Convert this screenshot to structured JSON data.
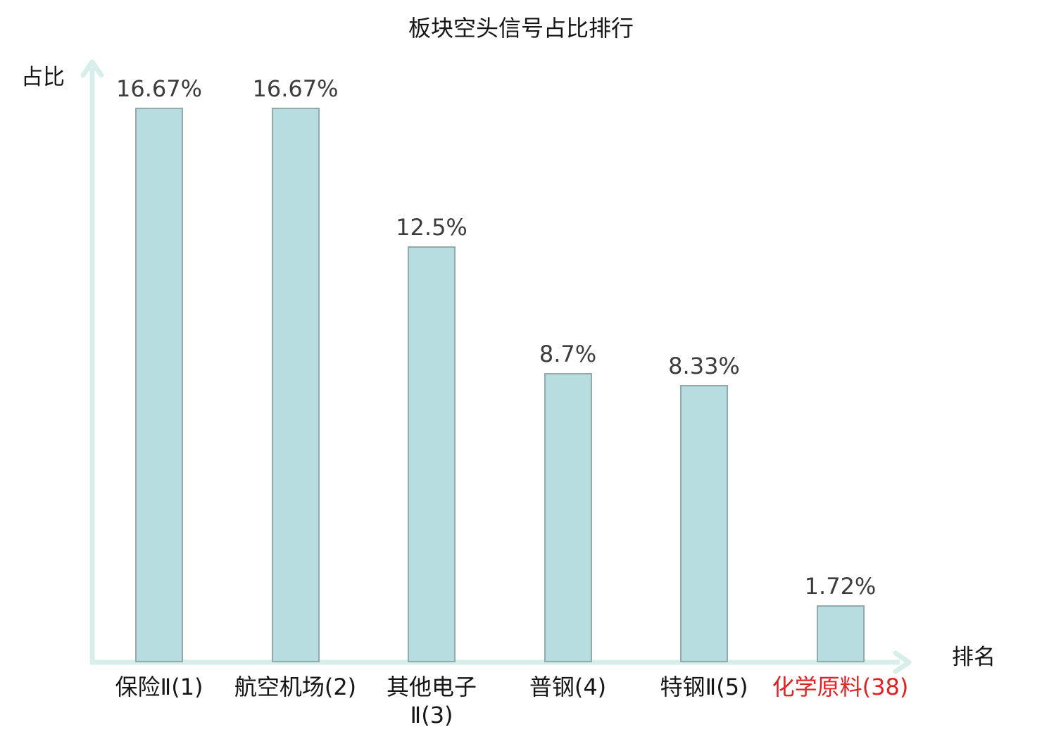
{
  "chart_data": {
    "type": "bar",
    "title": "板块空头信号占比排行",
    "ylabel": "占比",
    "xlabel": "排名",
    "categories": [
      "保险Ⅱ(1)",
      "航空机场(2)",
      "其他电子\nⅡ(3)",
      "普钢(4)",
      "特钢Ⅱ(5)",
      "化学原料(38)"
    ],
    "values": [
      16.67,
      16.67,
      12.5,
      8.7,
      8.33,
      1.72
    ],
    "value_labels": [
      "16.67%",
      "16.67%",
      "12.5%",
      "8.7%",
      "8.33%",
      "1.72%"
    ],
    "highlighted_category_index": 5,
    "ylim": [
      0,
      17.6
    ],
    "grid": false,
    "legend": false,
    "colors": {
      "bar_fill": "#b7dde1",
      "bar_border": "#92a9ad",
      "axis": "#d8eeea",
      "value_label": "#3c3c3c",
      "category_label": "#161616",
      "highlight": "#e02222"
    }
  }
}
